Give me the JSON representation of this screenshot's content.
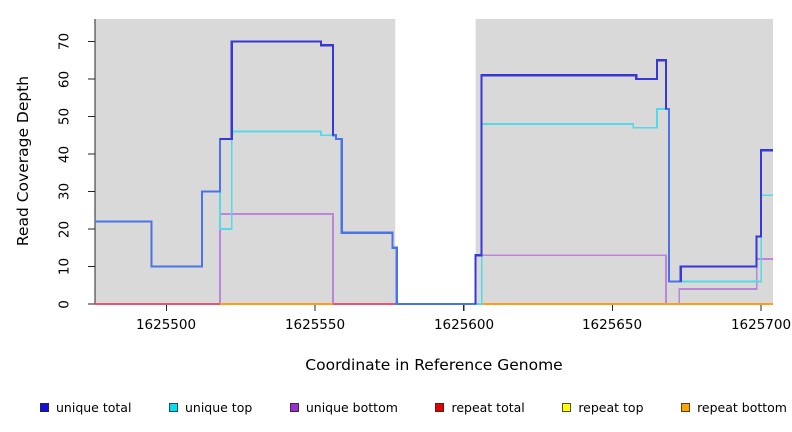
{
  "figure": {
    "background": "#FFFFFF",
    "axis_color": "#262626"
  },
  "chart_data": {
    "type": "line",
    "subtype": "step",
    "title": "",
    "xlabel": "Coordinate in Reference Genome",
    "ylabel": "Read Coverage Depth",
    "xlim": [
      1625476,
      1625704
    ],
    "ylim": [
      0,
      76
    ],
    "x_ticks": [
      1625500,
      1625550,
      1625600,
      1625650,
      1625700
    ],
    "y_ticks": [
      0,
      10,
      20,
      30,
      40,
      50,
      60,
      70
    ],
    "grid": false,
    "legend_position": "bottom",
    "plot_background": "#D9D9D9",
    "covered_regions": [
      [
        1625476,
        1625577
      ],
      [
        1625604,
        1625704
      ]
    ],
    "uncovered_gap": [
      1625577,
      1625604
    ],
    "draw_order": [
      "unique bottom",
      "repeat total",
      "repeat top",
      "repeat bottom",
      "unique top",
      "unique total"
    ],
    "series": [
      {
        "name": "unique total",
        "legend_color": "#0F0FE0",
        "line_color": "#4A73E6",
        "lw": 2.2,
        "parts": [
          [
            [
              1625476,
              1625495,
              22
            ],
            [
              1625495,
              1625512,
              10
            ],
            [
              1625512,
              1625518,
              30
            ],
            [
              1625518,
              1625522,
              44
            ],
            [
              1625522,
              1625552,
              70
            ],
            [
              1625552,
              1625556,
              69
            ],
            [
              1625556,
              1625557,
              45
            ],
            [
              1625557,
              1625559,
              44
            ],
            [
              1625559,
              1625576,
              19
            ],
            [
              1625576,
              1625577.5,
              15
            ],
            [
              1625577.5,
              1625604,
              0
            ],
            [
              1625604,
              1625606,
              13
            ],
            [
              1625606,
              1625658,
              61
            ],
            [
              1625658,
              1625665,
              60
            ],
            [
              1625665,
              1625668,
              65
            ],
            [
              1625668,
              1625669,
              52
            ],
            [
              1625669,
              1625673,
              6
            ],
            [
              1625673,
              1625698.5,
              10
            ],
            [
              1625698.5,
              1625700,
              18
            ],
            [
              1625700,
              1625704,
              41
            ]
          ]
        ],
        "overlays": [
          {
            "color": "#3837D8",
            "points": [
              [
                1625518,
                44
              ],
              [
                1625522,
                44
              ],
              [
                1625522,
                70
              ],
              [
                1625552,
                70
              ],
              [
                1625552,
                69
              ],
              [
                1625556,
                69
              ],
              [
                1625556,
                45
              ]
            ]
          },
          {
            "color": "#3837D8",
            "points": [
              [
                1625604,
                0
              ],
              [
                1625604,
                13
              ],
              [
                1625606,
                13
              ],
              [
                1625606,
                61
              ],
              [
                1625658,
                61
              ],
              [
                1625658,
                60
              ],
              [
                1625665,
                60
              ],
              [
                1625665,
                65
              ],
              [
                1625668,
                65
              ],
              [
                1625668,
                52
              ]
            ]
          },
          {
            "color": "#3837D8",
            "points": [
              [
                1625673,
                6
              ],
              [
                1625673,
                10
              ],
              [
                1625698.5,
                10
              ],
              [
                1625698.5,
                18
              ],
              [
                1625700,
                18
              ],
              [
                1625700,
                41
              ],
              [
                1625704,
                41
              ]
            ]
          }
        ]
      },
      {
        "name": "unique top",
        "legend_color": "#00E0EE",
        "line_color": "#55D9E8",
        "lw": 1.7,
        "parts": [
          [
            [
              1625476,
              1625495,
              22
            ],
            [
              1625495,
              1625512,
              10
            ],
            [
              1625512,
              1625518,
              30
            ],
            [
              1625518,
              1625522,
              20
            ],
            [
              1625522,
              1625552,
              46
            ],
            [
              1625552,
              1625557,
              45
            ],
            [
              1625557,
              1625559,
              44
            ],
            [
              1625559,
              1625576,
              19
            ],
            [
              1625576,
              1625577.5,
              15
            ],
            [
              1625577.5,
              1625606,
              0
            ],
            [
              1625606,
              1625657,
              48
            ],
            [
              1625657,
              1625665,
              47
            ],
            [
              1625665,
              1625669,
              52
            ],
            [
              1625669,
              1625700,
              6
            ],
            [
              1625700,
              1625704,
              29
            ]
          ]
        ],
        "overlays": []
      },
      {
        "name": "unique bottom",
        "legend_color": "#9531CE",
        "line_color": "#BC85DA",
        "lw": 1.7,
        "parts": [
          [
            [
              1625476,
              1625518,
              0
            ],
            [
              1625518,
              1625556,
              24
            ],
            [
              1625556,
              1625577.5,
              0
            ]
          ],
          [
            [
              1625604,
              1625604,
              0
            ],
            [
              1625604,
              1625668,
              13
            ],
            [
              1625668,
              1625672.5,
              0
            ],
            [
              1625672.5,
              1625698.5,
              4
            ],
            [
              1625698.5,
              1625704,
              12
            ]
          ]
        ],
        "overlays": []
      },
      {
        "name": "repeat total",
        "legend_color": "#E60000",
        "line_color": "#E2567E",
        "lw": 1.8,
        "parts": [
          [
            [
              1625476,
              1625577.5,
              0
            ]
          ]
        ],
        "overlays": []
      },
      {
        "name": "repeat top",
        "legend_color": "#FFFF00",
        "line_color": "#F5E626",
        "lw": 1.6,
        "parts": [],
        "overlays": []
      },
      {
        "name": "repeat bottom",
        "legend_color": "#FFA300",
        "line_color": "#FF9E1A",
        "lw": 1.8,
        "parts": [
          [
            [
              1625518,
              1625556,
              0
            ]
          ],
          [
            [
              1625604,
              1625704,
              0
            ]
          ]
        ],
        "overlays": []
      }
    ]
  }
}
